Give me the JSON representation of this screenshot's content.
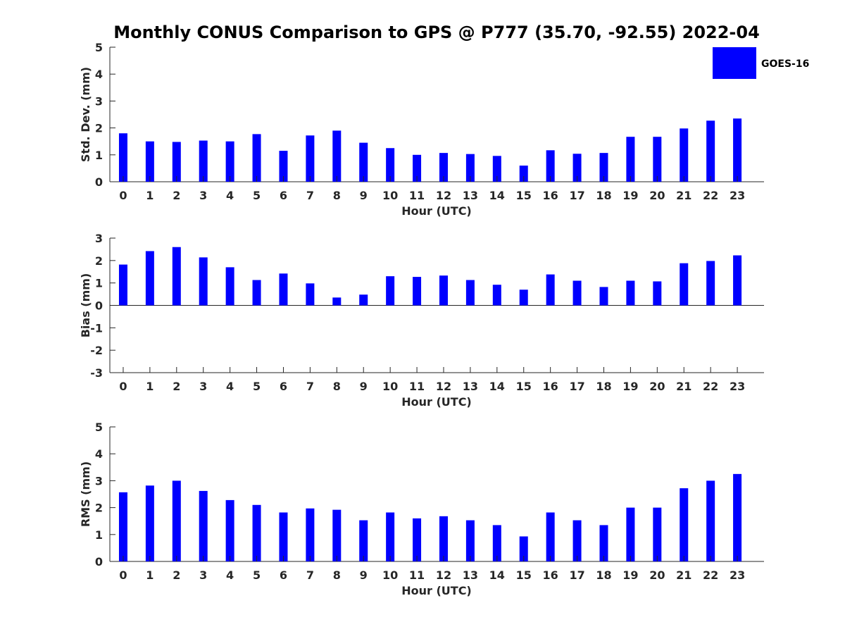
{
  "chart_data": {
    "title": "Monthly CONUS Comparison to GPS @ P777 (35.70, -92.55) 2022-04",
    "legend": {
      "entries": [
        "GOES-16"
      ],
      "placement": "top-right"
    },
    "colors": {
      "bar": "#0000ff",
      "axis": "#262626"
    },
    "panels": [
      {
        "type": "bar",
        "xlabel": "Hour (UTC)",
        "ylabel": "Std. Dev. (mm)",
        "ylim": [
          0,
          5
        ],
        "yticks": [
          0,
          1,
          2,
          3,
          4,
          5
        ],
        "categories": [
          "0",
          "1",
          "2",
          "3",
          "4",
          "5",
          "6",
          "7",
          "8",
          "9",
          "10",
          "11",
          "12",
          "13",
          "14",
          "15",
          "16",
          "17",
          "18",
          "19",
          "20",
          "21",
          "22",
          "23"
        ],
        "series": [
          {
            "name": "GOES-16",
            "values": [
              1.8,
              1.5,
              1.48,
              1.53,
              1.5,
              1.77,
              1.15,
              1.72,
              1.9,
              1.45,
              1.25,
              1.0,
              1.07,
              1.03,
              0.96,
              0.6,
              1.17,
              1.04,
              1.07,
              1.67,
              1.67,
              1.98,
              2.27,
              2.35
            ]
          }
        ]
      },
      {
        "type": "bar",
        "xlabel": "Hour (UTC)",
        "ylabel": "Bias (mm)",
        "ylim": [
          -3,
          3
        ],
        "yticks": [
          -3,
          -2,
          -1,
          0,
          1,
          2,
          3
        ],
        "categories": [
          "0",
          "1",
          "2",
          "3",
          "4",
          "5",
          "6",
          "7",
          "8",
          "9",
          "10",
          "11",
          "12",
          "13",
          "14",
          "15",
          "16",
          "17",
          "18",
          "19",
          "20",
          "21",
          "22",
          "23"
        ],
        "series": [
          {
            "name": "GOES-16",
            "values": [
              1.82,
              2.42,
              2.6,
              2.14,
              1.7,
              1.13,
              1.42,
              0.98,
              0.35,
              0.48,
              1.3,
              1.27,
              1.33,
              1.13,
              0.92,
              0.7,
              1.38,
              1.1,
              0.82,
              1.1,
              1.07,
              1.88,
              1.98,
              2.23
            ]
          }
        ]
      },
      {
        "type": "bar",
        "xlabel": "Hour (UTC)",
        "ylabel": "RMS (mm)",
        "ylim": [
          0,
          5
        ],
        "yticks": [
          0,
          1,
          2,
          3,
          4,
          5
        ],
        "categories": [
          "0",
          "1",
          "2",
          "3",
          "4",
          "5",
          "6",
          "7",
          "8",
          "9",
          "10",
          "11",
          "12",
          "13",
          "14",
          "15",
          "16",
          "17",
          "18",
          "19",
          "20",
          "21",
          "22",
          "23"
        ],
        "series": [
          {
            "name": "GOES-16",
            "values": [
              2.57,
              2.82,
              3.0,
              2.62,
              2.28,
              2.1,
              1.82,
              1.97,
              1.92,
              1.53,
              1.82,
              1.6,
              1.68,
              1.53,
              1.35,
              0.93,
              1.82,
              1.53,
              1.35,
              2.0,
              2.0,
              2.72,
              3.0,
              3.25
            ]
          }
        ]
      }
    ]
  }
}
